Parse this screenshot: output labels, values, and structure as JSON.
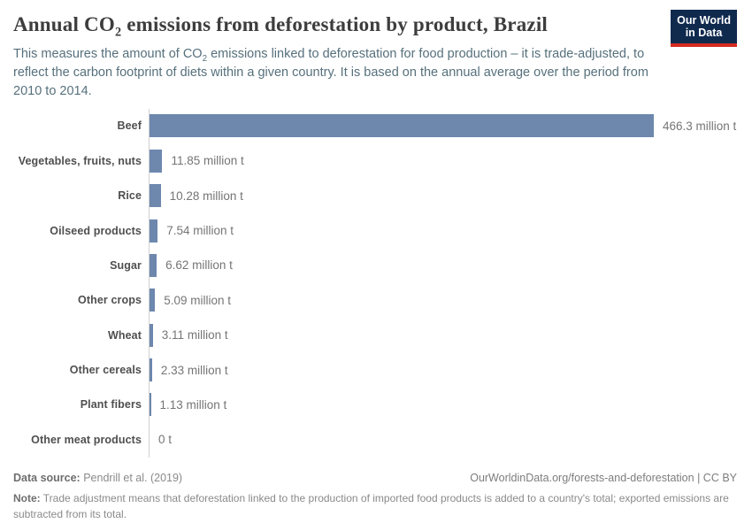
{
  "header": {
    "title_pre": "Annual CO",
    "title_sub": "2",
    "title_post": " emissions from deforestation by product, Brazil",
    "subtitle_pre": "This measures the amount of CO",
    "subtitle_sub": "2",
    "subtitle_post": " emissions linked to deforestation for food production – it is trade-adjusted, to reflect the carbon footprint of diets within a given country. It is based on the annual average over the period from 2010 to 2014.",
    "logo_line1": "Our World",
    "logo_line2": "in Data"
  },
  "chart_data": {
    "type": "bar",
    "orientation": "horizontal",
    "title": "Annual CO₂ emissions from deforestation by product, Brazil",
    "unit": "million t",
    "categories": [
      "Beef",
      "Vegetables, fruits, nuts",
      "Rice",
      "Oilseed products",
      "Sugar",
      "Other crops",
      "Wheat",
      "Other cereals",
      "Plant fibers",
      "Other meat products"
    ],
    "values": [
      466.3,
      11.85,
      10.28,
      7.54,
      6.62,
      5.09,
      3.11,
      2.33,
      1.13,
      0
    ],
    "value_labels": [
      "466.3 million t",
      "11.85 million t",
      "10.28 million t",
      "7.54 million t",
      "6.62 million t",
      "5.09 million t",
      "3.11 million t",
      "2.33 million t",
      "1.13 million t",
      "0 t"
    ],
    "xlim": [
      0,
      466.3
    ],
    "grid": false,
    "legend": "none",
    "bar_color": "#6d87ad"
  },
  "footer": {
    "source_label": "Data source:",
    "source_value": "Pendrill et al. (2019)",
    "url": "OurWorldinData.org/forests-and-deforestation",
    "license_sep": " | ",
    "license": "CC BY",
    "note_label": "Note:",
    "note_text": "Trade adjustment means that deforestation linked to the production of imported food products is added to a country's total; exported emissions are subtracted from its total."
  },
  "colors": {
    "bar": "#6d87ad",
    "logo_navy": "#102a4e",
    "logo_red": "#d42b20",
    "title_text": "#3d3d3d",
    "subtitle_text": "#56707c"
  }
}
